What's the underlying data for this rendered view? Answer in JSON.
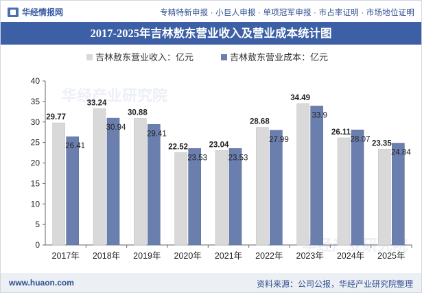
{
  "header": {
    "logo_text": "华经情报网",
    "services": "专精特新申报 · 小巨人申报 · 单项冠军申报 · 市占率证明 · 市场地位证明"
  },
  "footer": {
    "site": "www.huaon.com",
    "source": "资料来源：公司公报，华经产业研究院整理"
  },
  "watermark": "华经产业研究院",
  "colors": {
    "title_band": "#3c5fa5",
    "revenue": "#d9d9d9",
    "revenue_edge": "#c4c4c4",
    "cost": "#6b7fae",
    "cost_edge": "#5a6c9a"
  },
  "chart_data": {
    "type": "bar",
    "title": "2017-2025年吉林敖东营业收入及营业成本统计图",
    "categories": [
      "2017年",
      "2018年",
      "2019年",
      "2020年",
      "2021年",
      "2022年",
      "2023年",
      "2024年",
      "2025年"
    ],
    "series": [
      {
        "name": "吉林敖东营业收入：亿元",
        "values": [
          29.77,
          33.24,
          30.88,
          22.52,
          23.04,
          28.68,
          34.49,
          26.11,
          23.35
        ]
      },
      {
        "name": "吉林敖东营业成本：亿元",
        "values": [
          26.41,
          30.94,
          29.41,
          23.53,
          23.53,
          27.99,
          33.9,
          28.07,
          24.84
        ]
      }
    ],
    "ylim": [
      0,
      40
    ],
    "yticks": [
      0,
      5,
      10,
      15,
      20,
      25,
      30,
      35,
      40
    ],
    "legend_position": "top",
    "grid": false
  }
}
